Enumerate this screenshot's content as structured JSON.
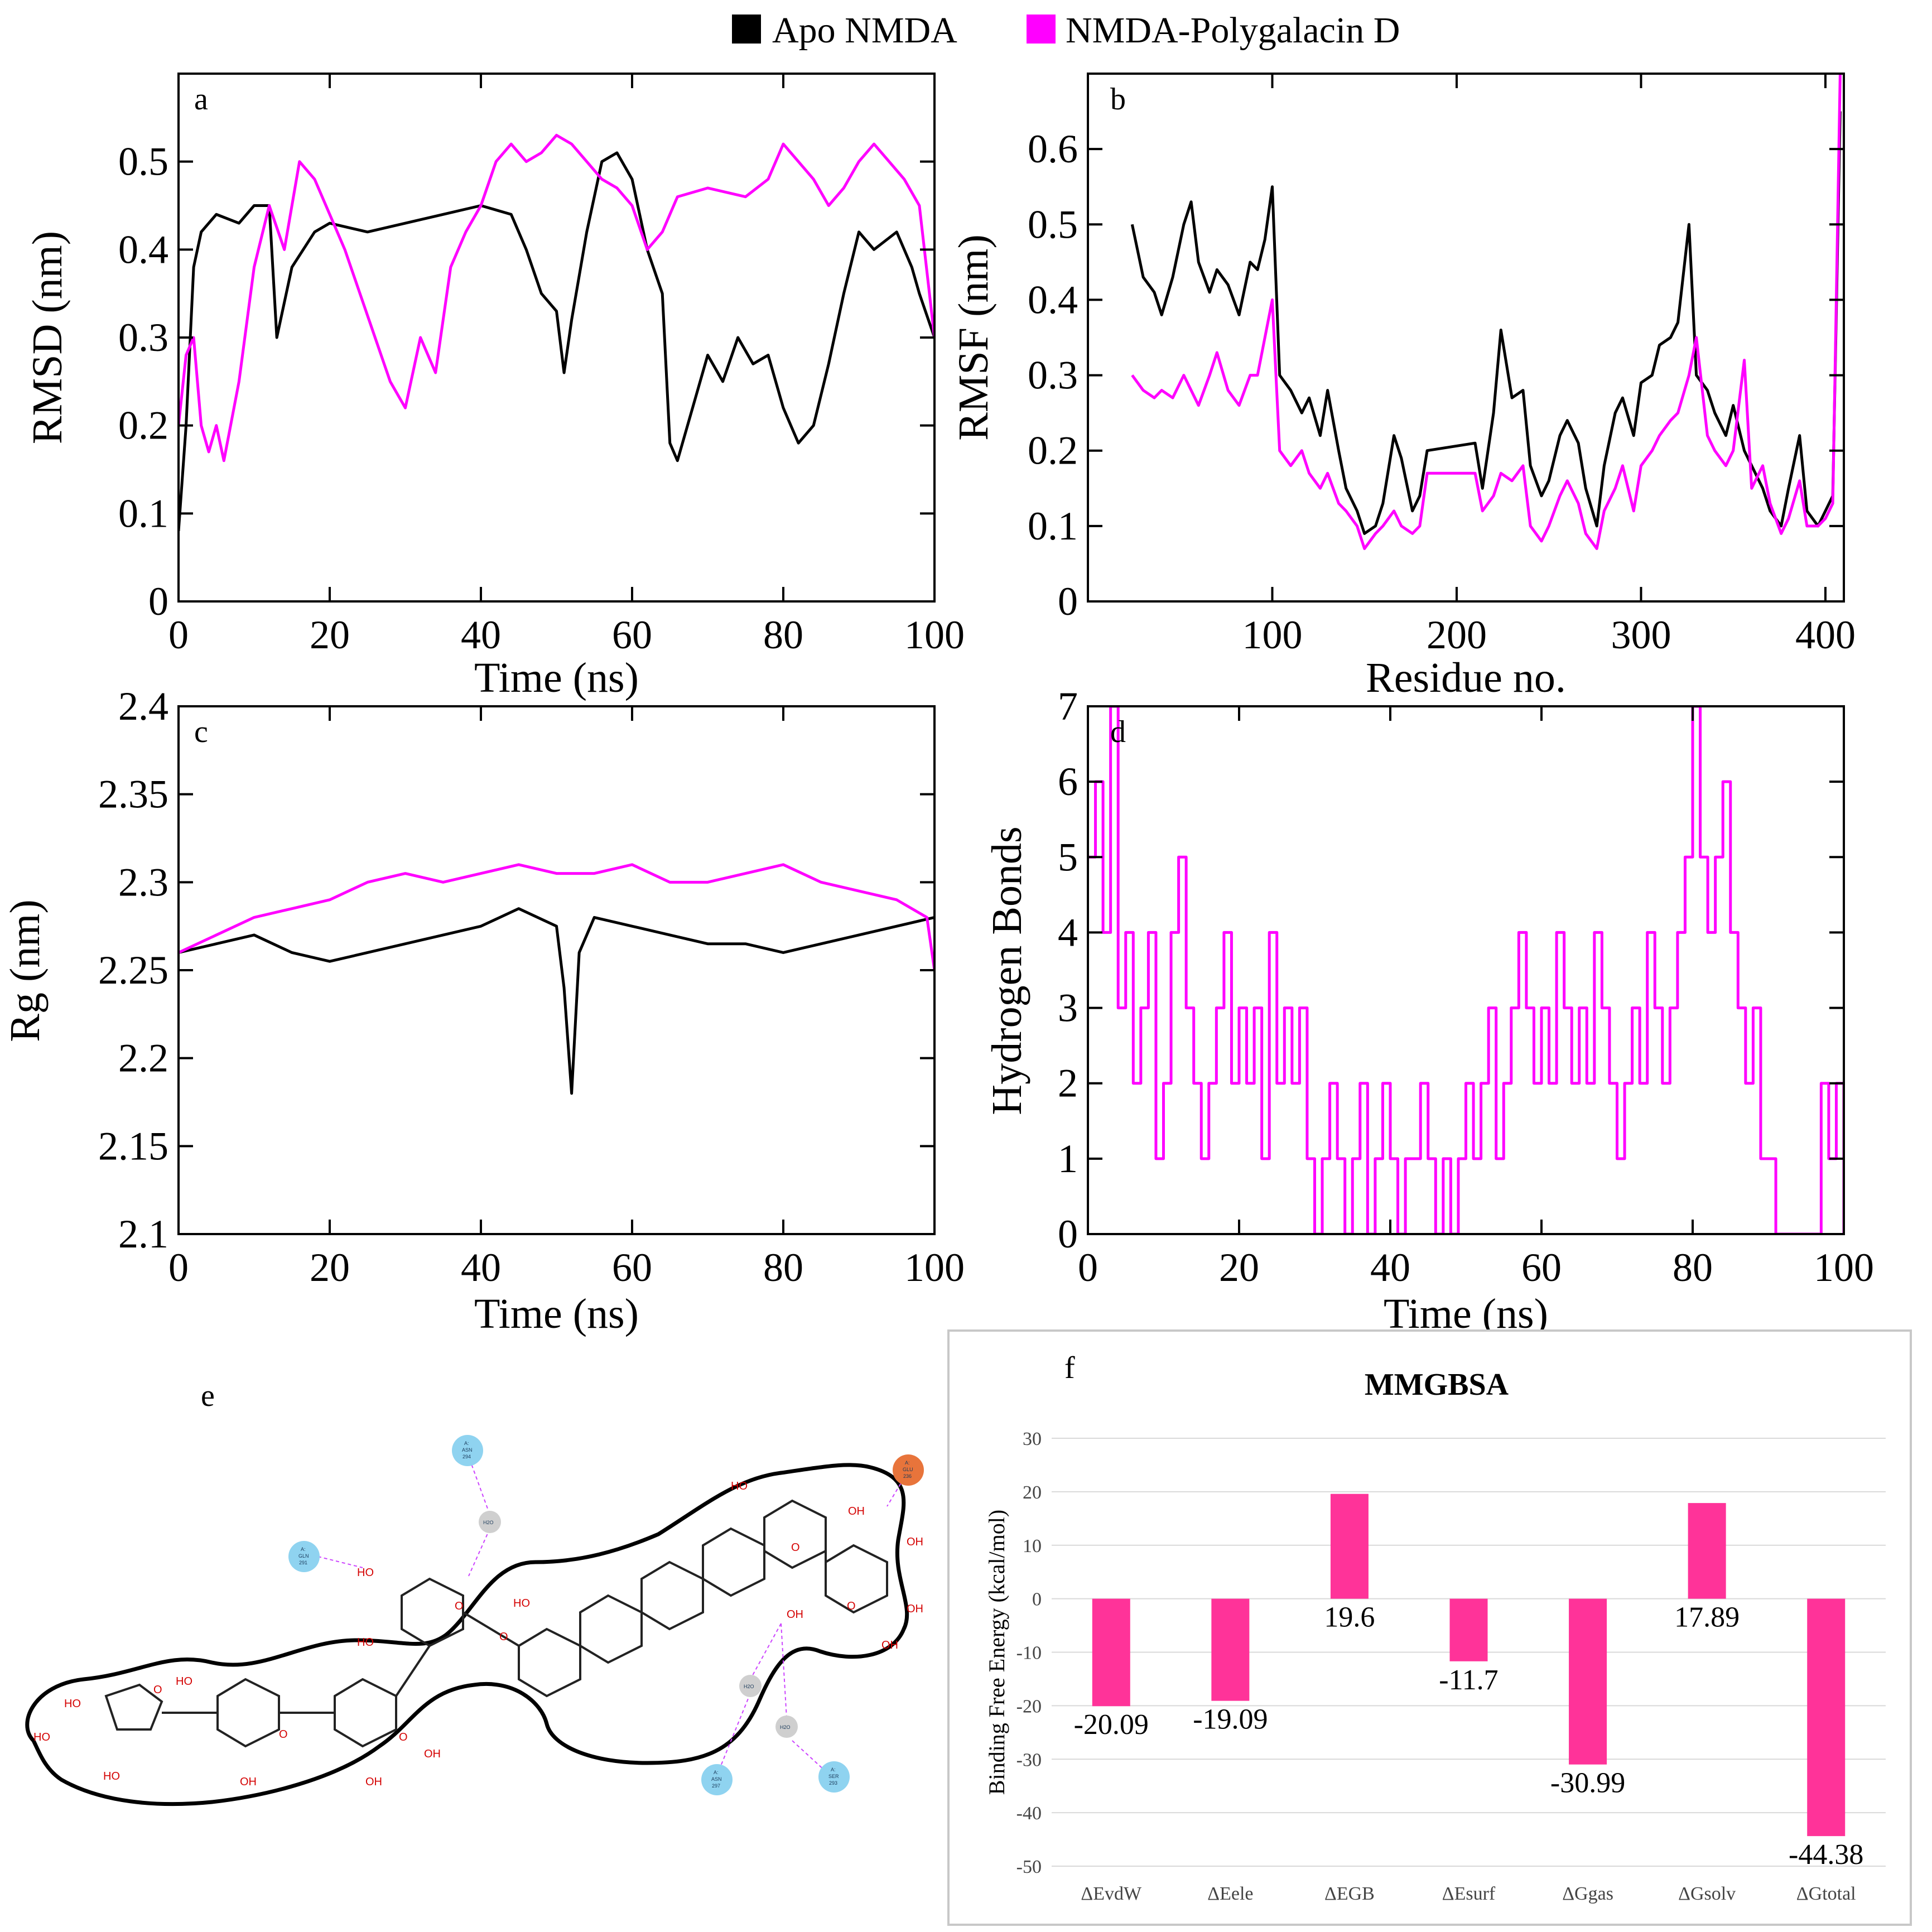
{
  "legend": {
    "series": [
      {
        "name": "Apo NMDA",
        "color": "#000000"
      },
      {
        "name": "NMDA-Polygalacin D",
        "color": "#ff00ff"
      }
    ]
  },
  "panels": {
    "a": {
      "label": "a"
    },
    "b": {
      "label": "b"
    },
    "c": {
      "label": "c"
    },
    "d": {
      "label": "d"
    },
    "e": {
      "label": "e"
    },
    "f": {
      "label": "f"
    }
  },
  "ligand_diagram": {
    "residues": [
      {
        "chain": "A:",
        "name": "ASN",
        "num": "294",
        "kind": "polar"
      },
      {
        "chain": "A:",
        "name": "GLN",
        "num": "291",
        "kind": "polar"
      },
      {
        "chain": "A:",
        "name": "GLU",
        "num": "236",
        "kind": "negative"
      },
      {
        "chain": "A:",
        "name": "ASN",
        "num": "297",
        "kind": "polar"
      },
      {
        "chain": "A:",
        "name": "SER",
        "num": "293",
        "kind": "polar"
      }
    ],
    "waters": [
      "H2O",
      "H2O",
      "H2O"
    ],
    "atoms": [
      "HO",
      "HO",
      "HO",
      "HO",
      "HO",
      "HO",
      "HO",
      "OH",
      "OH",
      "OH",
      "OH",
      "OH",
      "OH",
      "OH",
      "OH",
      "HO",
      "O",
      "O",
      "O",
      "O",
      "O",
      "O",
      "O"
    ]
  },
  "chart_data": [
    {
      "panel": "a",
      "type": "line",
      "xlabel": "Time (ns)",
      "ylabel": "RMSD (nm)",
      "xlim": [
        0,
        100
      ],
      "ylim": [
        0,
        0.6
      ],
      "xticks": [
        0,
        20,
        40,
        60,
        80,
        100
      ],
      "yticks": [
        0,
        0.1,
        0.2,
        0.3,
        0.4,
        0.5
      ],
      "ytick_labels": [
        "0",
        "0.1",
        "0.2",
        "0.3",
        "0.4",
        "0.5"
      ],
      "series": [
        {
          "name": "Apo NMDA",
          "color": "#000000",
          "x": [
            0,
            1,
            2,
            3,
            5,
            8,
            10,
            12,
            13,
            15,
            18,
            20,
            25,
            30,
            35,
            40,
            44,
            46,
            48,
            50,
            51,
            52,
            54,
            56,
            58,
            60,
            62,
            64,
            65,
            66,
            68,
            70,
            72,
            74,
            76,
            78,
            80,
            82,
            84,
            86,
            88,
            90,
            92,
            95,
            97,
            98,
            100
          ],
          "y": [
            0.08,
            0.2,
            0.38,
            0.42,
            0.44,
            0.43,
            0.45,
            0.45,
            0.3,
            0.38,
            0.42,
            0.43,
            0.42,
            0.43,
            0.44,
            0.45,
            0.44,
            0.4,
            0.35,
            0.33,
            0.26,
            0.32,
            0.42,
            0.5,
            0.51,
            0.48,
            0.4,
            0.35,
            0.18,
            0.16,
            0.22,
            0.28,
            0.25,
            0.3,
            0.27,
            0.28,
            0.22,
            0.18,
            0.2,
            0.27,
            0.35,
            0.42,
            0.4,
            0.42,
            0.38,
            0.35,
            0.3
          ]
        },
        {
          "name": "NMDA-Polygalacin D",
          "color": "#ff00ff",
          "x": [
            0,
            1,
            2,
            3,
            4,
            5,
            6,
            8,
            10,
            12,
            14,
            16,
            18,
            20,
            22,
            24,
            26,
            28,
            30,
            32,
            34,
            36,
            38,
            40,
            42,
            44,
            46,
            48,
            50,
            52,
            54,
            56,
            58,
            60,
            62,
            64,
            66,
            70,
            75,
            78,
            80,
            82,
            84,
            86,
            88,
            90,
            92,
            94,
            96,
            98,
            100
          ],
          "y": [
            0.2,
            0.28,
            0.3,
            0.2,
            0.17,
            0.2,
            0.16,
            0.25,
            0.38,
            0.45,
            0.4,
            0.5,
            0.48,
            0.44,
            0.4,
            0.35,
            0.3,
            0.25,
            0.22,
            0.3,
            0.26,
            0.38,
            0.42,
            0.45,
            0.5,
            0.52,
            0.5,
            0.51,
            0.53,
            0.52,
            0.5,
            0.48,
            0.47,
            0.45,
            0.4,
            0.42,
            0.46,
            0.47,
            0.46,
            0.48,
            0.52,
            0.5,
            0.48,
            0.45,
            0.47,
            0.5,
            0.52,
            0.5,
            0.48,
            0.45,
            0.3
          ]
        }
      ]
    },
    {
      "panel": "b",
      "type": "line",
      "xlabel": "Residue no.",
      "ylabel": "RMSF (nm)",
      "xlim": [
        0,
        410
      ],
      "ylim": [
        0,
        0.7
      ],
      "xticks": [
        100,
        200,
        300,
        400
      ],
      "yticks": [
        0,
        0.1,
        0.2,
        0.3,
        0.4,
        0.5,
        0.6
      ],
      "ytick_labels": [
        "0",
        "0.1",
        "0.2",
        "0.3",
        "0.4",
        "0.5",
        "0.6"
      ],
      "series": [
        {
          "name": "Apo NMDA",
          "color": "#000000",
          "x": [
            24,
            30,
            36,
            40,
            46,
            52,
            56,
            60,
            66,
            70,
            76,
            82,
            88,
            92,
            96,
            100,
            104,
            110,
            116,
            120,
            126,
            130,
            136,
            140,
            146,
            150,
            156,
            160,
            166,
            170,
            176,
            180,
            184,
            210,
            214,
            220,
            224,
            230,
            236,
            240,
            246,
            250,
            256,
            260,
            266,
            270,
            276,
            280,
            286,
            290,
            296,
            300,
            306,
            310,
            316,
            320,
            326,
            330,
            336,
            340,
            346,
            350,
            356,
            360,
            366,
            370,
            376,
            380,
            386,
            390,
            396,
            400,
            404,
            408
          ],
          "y": [
            0.5,
            0.43,
            0.41,
            0.38,
            0.43,
            0.5,
            0.53,
            0.45,
            0.41,
            0.44,
            0.42,
            0.38,
            0.45,
            0.44,
            0.48,
            0.55,
            0.3,
            0.28,
            0.25,
            0.27,
            0.22,
            0.28,
            0.2,
            0.15,
            0.12,
            0.09,
            0.1,
            0.13,
            0.22,
            0.19,
            0.12,
            0.14,
            0.2,
            0.21,
            0.15,
            0.25,
            0.36,
            0.27,
            0.28,
            0.18,
            0.14,
            0.16,
            0.22,
            0.24,
            0.21,
            0.15,
            0.1,
            0.18,
            0.25,
            0.27,
            0.22,
            0.29,
            0.3,
            0.34,
            0.35,
            0.37,
            0.5,
            0.3,
            0.28,
            0.25,
            0.22,
            0.26,
            0.2,
            0.18,
            0.15,
            0.12,
            0.1,
            0.15,
            0.22,
            0.12,
            0.1,
            0.12,
            0.14,
            0.65
          ]
        },
        {
          "name": "NMDA-Polygalacin D",
          "color": "#ff00ff",
          "x": [
            24,
            30,
            36,
            40,
            46,
            52,
            56,
            60,
            66,
            70,
            76,
            82,
            88,
            92,
            96,
            100,
            104,
            110,
            116,
            120,
            126,
            130,
            136,
            140,
            146,
            150,
            156,
            160,
            166,
            170,
            176,
            180,
            184,
            210,
            214,
            220,
            224,
            230,
            236,
            240,
            246,
            250,
            256,
            260,
            266,
            270,
            276,
            280,
            286,
            290,
            296,
            300,
            306,
            310,
            316,
            320,
            326,
            330,
            336,
            340,
            346,
            350,
            356,
            360,
            366,
            370,
            376,
            380,
            386,
            390,
            396,
            400,
            404,
            408
          ],
          "y": [
            0.3,
            0.28,
            0.27,
            0.28,
            0.27,
            0.3,
            0.28,
            0.26,
            0.3,
            0.33,
            0.28,
            0.26,
            0.3,
            0.3,
            0.35,
            0.4,
            0.2,
            0.18,
            0.2,
            0.17,
            0.15,
            0.17,
            0.13,
            0.12,
            0.1,
            0.07,
            0.09,
            0.1,
            0.12,
            0.1,
            0.09,
            0.1,
            0.17,
            0.17,
            0.12,
            0.14,
            0.17,
            0.16,
            0.18,
            0.1,
            0.08,
            0.1,
            0.14,
            0.16,
            0.13,
            0.09,
            0.07,
            0.12,
            0.15,
            0.18,
            0.12,
            0.18,
            0.2,
            0.22,
            0.24,
            0.25,
            0.3,
            0.35,
            0.22,
            0.2,
            0.18,
            0.2,
            0.32,
            0.15,
            0.18,
            0.13,
            0.09,
            0.11,
            0.16,
            0.1,
            0.1,
            0.11,
            0.13,
            0.7
          ]
        }
      ]
    },
    {
      "panel": "c",
      "type": "line",
      "xlabel": "Time (ns)",
      "ylabel": "Rg (nm)",
      "xlim": [
        0,
        100
      ],
      "ylim": [
        2.1,
        2.4
      ],
      "xticks": [
        0,
        20,
        40,
        60,
        80,
        100
      ],
      "yticks": [
        2.1,
        2.15,
        2.2,
        2.25,
        2.3,
        2.35,
        2.4
      ],
      "ytick_labels": [
        "2.1",
        "2.15",
        "2.2",
        "2.25",
        "2.3",
        "2.35",
        "2.4"
      ],
      "series": [
        {
          "name": "Apo NMDA",
          "color": "#000000",
          "x": [
            0,
            5,
            10,
            15,
            20,
            25,
            30,
            35,
            40,
            45,
            50,
            51,
            52,
            53,
            55,
            60,
            65,
            70,
            75,
            80,
            85,
            90,
            95,
            100
          ],
          "y": [
            2.26,
            2.265,
            2.27,
            2.26,
            2.255,
            2.26,
            2.265,
            2.27,
            2.275,
            2.285,
            2.275,
            2.24,
            2.18,
            2.26,
            2.28,
            2.275,
            2.27,
            2.265,
            2.265,
            2.26,
            2.265,
            2.27,
            2.275,
            2.28
          ]
        },
        {
          "name": "NMDA-Polygalacin D",
          "color": "#ff00ff",
          "x": [
            0,
            5,
            10,
            15,
            20,
            25,
            30,
            35,
            40,
            45,
            50,
            55,
            60,
            65,
            70,
            75,
            80,
            85,
            90,
            95,
            99,
            100
          ],
          "y": [
            2.26,
            2.27,
            2.28,
            2.285,
            2.29,
            2.3,
            2.305,
            2.3,
            2.305,
            2.31,
            2.305,
            2.305,
            2.31,
            2.3,
            2.3,
            2.305,
            2.31,
            2.3,
            2.295,
            2.29,
            2.28,
            2.25
          ]
        }
      ]
    },
    {
      "panel": "d",
      "type": "line",
      "xlabel": "Time (ns)",
      "ylabel": "Hydrogen Bonds",
      "xlim": [
        0,
        100
      ],
      "ylim": [
        0,
        7
      ],
      "xticks": [
        0,
        20,
        40,
        60,
        80,
        100
      ],
      "yticks": [
        0,
        1,
        2,
        3,
        4,
        5,
        6,
        7
      ],
      "ytick_labels": [
        "0",
        "1",
        "2",
        "3",
        "4",
        "5",
        "6",
        "7"
      ],
      "series": [
        {
          "name": "NMDA-Polygalacin D",
          "color": "#ff00ff",
          "x": [
            0,
            1,
            2,
            3,
            4,
            5,
            6,
            7,
            8,
            9,
            10,
            11,
            12,
            13,
            14,
            15,
            16,
            17,
            18,
            19,
            20,
            21,
            22,
            23,
            24,
            25,
            26,
            27,
            28,
            29,
            30,
            31,
            32,
            33,
            34,
            35,
            36,
            37,
            38,
            39,
            40,
            41,
            42,
            43,
            44,
            45,
            46,
            47,
            48,
            49,
            50,
            51,
            52,
            53,
            54,
            55,
            56,
            57,
            58,
            59,
            60,
            61,
            62,
            63,
            64,
            65,
            66,
            67,
            68,
            69,
            70,
            71,
            72,
            73,
            74,
            75,
            76,
            77,
            78,
            79,
            80,
            81,
            82,
            83,
            84,
            85,
            86,
            87,
            88,
            89,
            90,
            91,
            92,
            93,
            94,
            95,
            96,
            97,
            98,
            99,
            100
          ],
          "y": [
            5,
            6,
            4,
            7,
            3,
            4,
            2,
            3,
            4,
            1,
            2,
            4,
            5,
            3,
            2,
            1,
            2,
            3,
            4,
            2,
            3,
            2,
            3,
            1,
            4,
            2,
            3,
            2,
            3,
            1,
            0,
            1,
            2,
            1,
            0,
            1,
            2,
            0,
            1,
            2,
            1,
            0,
            1,
            1,
            2,
            1,
            0,
            1,
            0,
            1,
            2,
            1,
            2,
            3,
            1,
            2,
            3,
            4,
            3,
            2,
            3,
            2,
            4,
            3,
            2,
            3,
            2,
            4,
            3,
            2,
            1,
            2,
            3,
            2,
            4,
            3,
            2,
            3,
            4,
            5,
            7,
            5,
            4,
            5,
            6,
            4,
            3,
            2,
            3,
            1,
            1,
            0,
            0,
            0,
            0,
            0,
            0,
            2,
            1,
            2,
            0
          ]
        }
      ]
    },
    {
      "panel": "f",
      "type": "bar",
      "title": "MMGBSA",
      "xlabel": "",
      "ylabel": "Binding Free Energy (kcal/mol)",
      "categories": [
        "ΔEvdW",
        "ΔEele",
        "ΔEGB",
        "ΔEsurf",
        "ΔGgas",
        "ΔGsolv",
        "ΔGtotal"
      ],
      "values": [
        -20.09,
        -19.09,
        19.6,
        -11.7,
        -30.99,
        17.89,
        -44.38
      ],
      "value_labels": [
        "-20.09",
        "-19.09",
        "19.6",
        "-11.7",
        "-30.99",
        "17.89",
        "-44.38"
      ],
      "ylim": [
        -50,
        30
      ],
      "yticks": [
        -50,
        -40,
        -30,
        -20,
        -10,
        0,
        10,
        20,
        30
      ],
      "ytick_labels": [
        "-50",
        "-40",
        "-30",
        "-20",
        "-10",
        "0",
        "10",
        "20",
        "30"
      ],
      "color": "#ff3399"
    }
  ]
}
